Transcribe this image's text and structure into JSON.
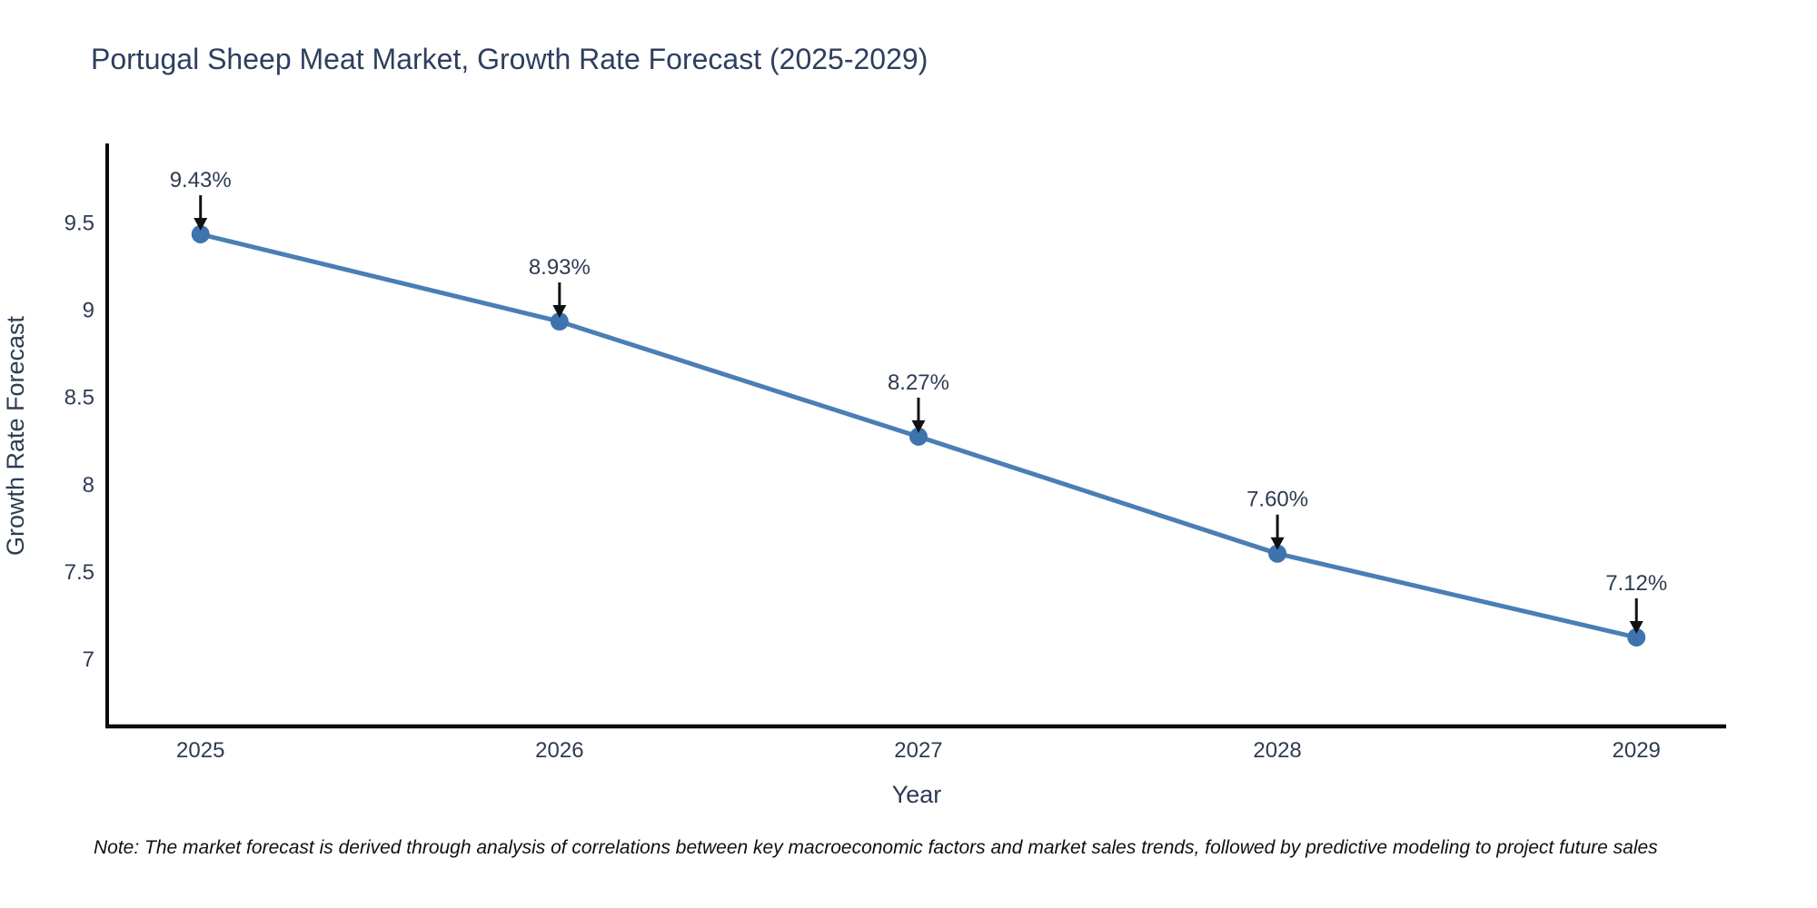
{
  "chart_data": {
    "type": "line",
    "title": "Portugal Sheep Meat Market, Growth Rate Forecast (2025-2029)",
    "xlabel": "Year",
    "ylabel": "Growth Rate Forecast",
    "x": [
      2025,
      2026,
      2027,
      2028,
      2029
    ],
    "y": [
      9.43,
      8.93,
      8.27,
      7.6,
      7.12
    ],
    "point_labels": [
      "9.43%",
      "8.93%",
      "8.27%",
      "7.60%",
      "7.12%"
    ],
    "yticks": [
      7,
      7.5,
      8,
      8.5,
      9,
      9.5
    ],
    "ytick_labels": [
      "7",
      "7.5",
      "8",
      "8.5",
      "9",
      "9.5"
    ],
    "xlim": [
      2024.74,
      2029.25
    ],
    "ylim": [
      6.61,
      9.95
    ],
    "grid": false,
    "legend": "none",
    "note": "Note: The market forecast is derived through analysis of correlations between key macroeconomic factors and market sales trends, followed by predictive modeling to project future sales",
    "colors": {
      "line": "#4a7eb5",
      "marker": "#3e74ad",
      "axis": "#0a0a0a",
      "text": "#2e3b52",
      "title_text": "#2e3f5e",
      "annotation_arrow": "#111111",
      "note_text": "#101010",
      "background": "#ffffff"
    }
  }
}
